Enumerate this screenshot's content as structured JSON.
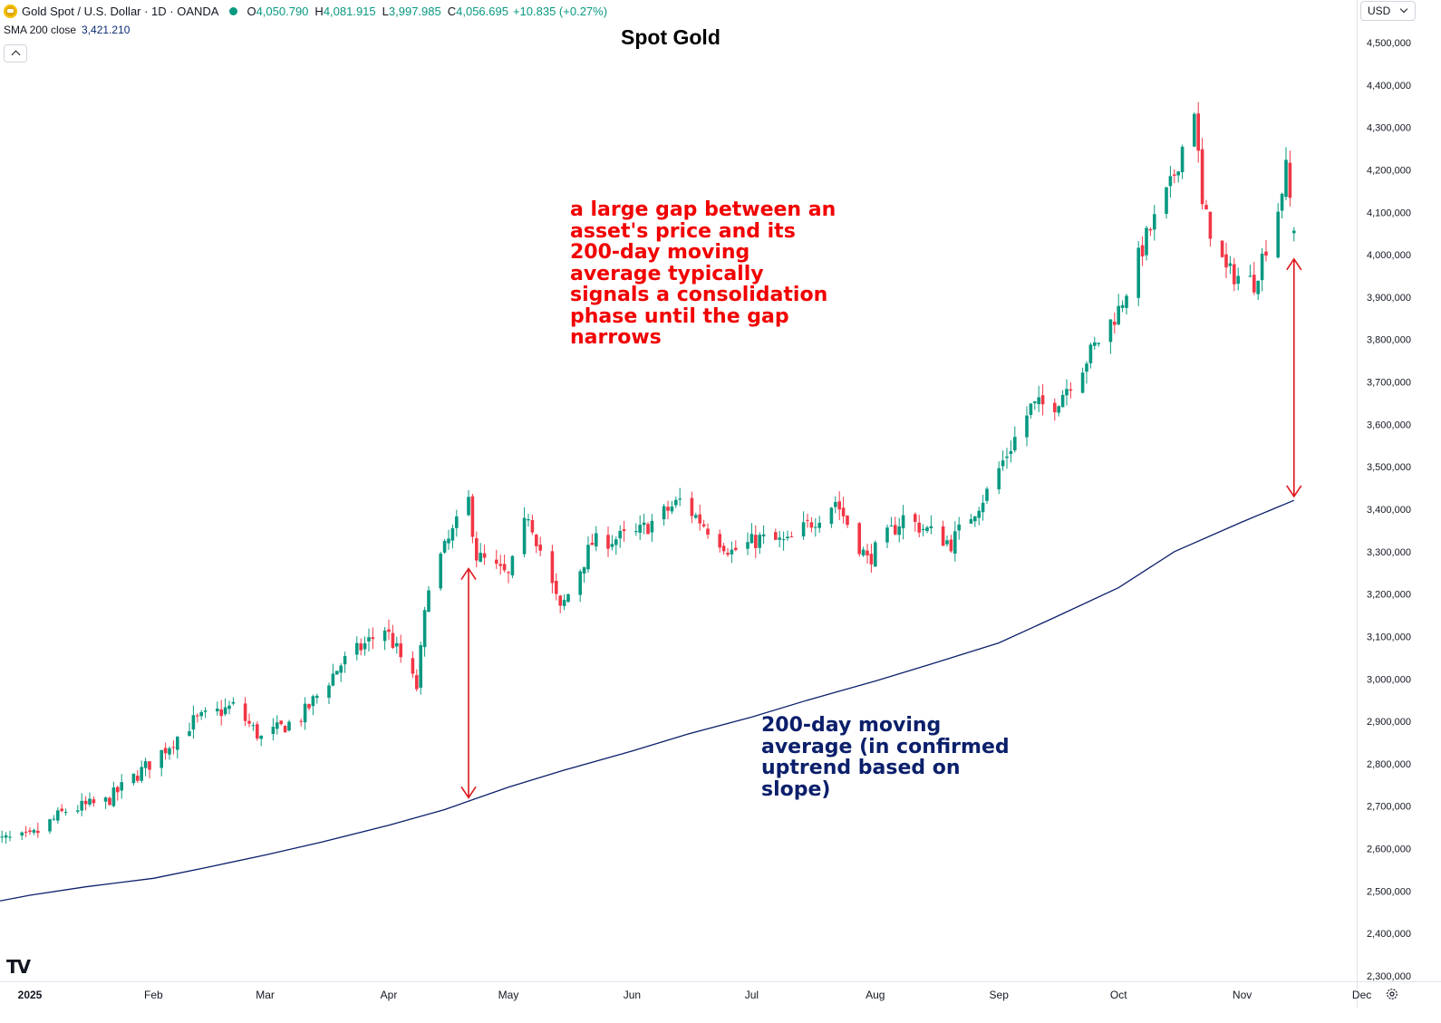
{
  "header": {
    "symbol_title": "Gold Spot / U.S. Dollar · 1D · OANDA",
    "ohlc": [
      {
        "key": "O",
        "value": "4,050.790"
      },
      {
        "key": "H",
        "value": "4,081.915"
      },
      {
        "key": "L",
        "value": "3,997.985"
      },
      {
        "key": "C",
        "value": "4,056.695"
      }
    ],
    "change": "+10.835 (+0.27%)",
    "indicator_label": "SMA 200 close",
    "indicator_value": "3,421.210",
    "currency": "USD"
  },
  "icons": {
    "symbol": "gold-coin-icon",
    "status": "market-open-dot-icon",
    "collapse": "chevron-up-icon",
    "currency": "chevron-down-icon",
    "logo": "tradingview-logo-icon",
    "settings": "gear-icon"
  },
  "annotations": {
    "gap_note": "a large gap between an asset's price and its 200-day moving average typically signals a consolidation phase until the gap narrows",
    "sma_note": "200-day moving average (in confirmed uptrend based on slope)"
  },
  "colors": {
    "up": "#089981",
    "down": "#f23645",
    "sma": "#0b1f6b",
    "annotation_red": "#f20000",
    "arrow": "#e0161b"
  },
  "chart_data": {
    "type": "candlestick",
    "title": "Spot Gold",
    "y_axis": {
      "min": 2300000,
      "max": 4500000,
      "ticks": [
        "2,300,000",
        "2,400,000",
        "2,500,000",
        "2,600,000",
        "2,700,000",
        "2,800,000",
        "2,900,000",
        "3,000,000",
        "3,100,000",
        "3,200,000",
        "3,300,000",
        "3,400,000",
        "3,500,000",
        "3,600,000",
        "3,700,000",
        "3,800,000",
        "3,900,000",
        "4,000,000",
        "4,100,000",
        "4,200,000",
        "4,300,000",
        "4,400,000",
        "4,500,000"
      ],
      "scale_note": "axis labels are shown x1000 relative to price"
    },
    "x_axis": {
      "labels": [
        {
          "label": "2025",
          "date": "2025-01-01",
          "bold": true
        },
        {
          "label": "Feb",
          "date": "2025-02-01"
        },
        {
          "label": "Mar",
          "date": "2025-03-01"
        },
        {
          "label": "Apr",
          "date": "2025-04-01"
        },
        {
          "label": "May",
          "date": "2025-05-01"
        },
        {
          "label": "Jun",
          "date": "2025-06-01"
        },
        {
          "label": "Jul",
          "date": "2025-07-01"
        },
        {
          "label": "Aug",
          "date": "2025-08-01"
        },
        {
          "label": "Sep",
          "date": "2025-09-01"
        },
        {
          "label": "Oct",
          "date": "2025-10-01"
        },
        {
          "label": "Nov",
          "date": "2025-11-01"
        },
        {
          "label": "Dec",
          "date": "2025-12-01"
        }
      ]
    },
    "series": [
      {
        "name": "SMA 200 close",
        "type": "line",
        "points": [
          [
            "2024-12-23",
            2474
          ],
          [
            "2025-01-01",
            2490
          ],
          [
            "2025-01-15",
            2510
          ],
          [
            "2025-02-01",
            2530
          ],
          [
            "2025-02-15",
            2557
          ],
          [
            "2025-03-01",
            2585
          ],
          [
            "2025-03-15",
            2615
          ],
          [
            "2025-04-01",
            2655
          ],
          [
            "2025-04-15",
            2692
          ],
          [
            "2025-05-01",
            2745
          ],
          [
            "2025-05-15",
            2785
          ],
          [
            "2025-06-01",
            2830
          ],
          [
            "2025-06-15",
            2870
          ],
          [
            "2025-07-01",
            2910
          ],
          [
            "2025-07-15",
            2950
          ],
          [
            "2025-08-01",
            2995
          ],
          [
            "2025-08-15",
            3035
          ],
          [
            "2025-09-01",
            3085
          ],
          [
            "2025-09-15",
            3145
          ],
          [
            "2025-10-01",
            3215
          ],
          [
            "2025-10-15",
            3300
          ],
          [
            "2025-11-01",
            3370
          ],
          [
            "2025-11-14",
            3421
          ]
        ]
      },
      {
        "name": "Gold Spot / U.S. Dollar",
        "type": "candlestick",
        "anchors": [
          [
            "2024-12-23",
            2618
          ],
          [
            "2025-01-01",
            2625
          ],
          [
            "2025-01-10",
            2690
          ],
          [
            "2025-01-20",
            2710
          ],
          [
            "2025-01-31",
            2800
          ],
          [
            "2025-02-11",
            2900
          ],
          [
            "2025-02-21",
            2935
          ],
          [
            "2025-02-28",
            2860
          ],
          [
            "2025-03-10",
            2910
          ],
          [
            "2025-03-20",
            3035
          ],
          [
            "2025-03-31",
            3120
          ],
          [
            "2025-04-08",
            2980
          ],
          [
            "2025-04-11",
            3230
          ],
          [
            "2025-04-21",
            3420
          ],
          [
            "2025-04-23",
            3290
          ],
          [
            "2025-05-01",
            3240
          ],
          [
            "2025-05-06",
            3390
          ],
          [
            "2025-05-14",
            3160
          ],
          [
            "2025-05-22",
            3320
          ],
          [
            "2025-06-02",
            3340
          ],
          [
            "2025-06-13",
            3420
          ],
          [
            "2025-06-26",
            3300
          ],
          [
            "2025-07-03",
            3330
          ],
          [
            "2025-07-10",
            3320
          ],
          [
            "2025-07-22",
            3420
          ],
          [
            "2025-07-30",
            3280
          ],
          [
            "2025-08-08",
            3380
          ],
          [
            "2025-08-20",
            3320
          ],
          [
            "2025-08-29",
            3440
          ],
          [
            "2025-09-09",
            3640
          ],
          [
            "2025-09-15",
            3650
          ],
          [
            "2025-09-22",
            3740
          ],
          [
            "2025-10-01",
            3870
          ],
          [
            "2025-10-08",
            4040
          ],
          [
            "2025-10-14",
            4160
          ],
          [
            "2025-10-20",
            4350
          ],
          [
            "2025-10-22",
            4110
          ],
          [
            "2025-10-28",
            3960
          ],
          [
            "2025-11-04",
            3935
          ],
          [
            "2025-11-10",
            4110
          ],
          [
            "2025-11-12",
            4200
          ],
          [
            "2025-11-14",
            4057
          ]
        ]
      }
    ],
    "annotations": [
      {
        "type": "double-arrow",
        "date": "2025-04-21",
        "from": 3260,
        "to": 2720
      },
      {
        "type": "double-arrow",
        "date": "2025-11-14",
        "from": 3990,
        "to": 3430
      }
    ]
  }
}
